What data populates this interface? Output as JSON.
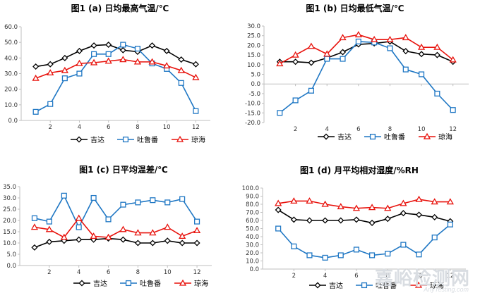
{
  "colors": {
    "jida": "#000000",
    "tulufan": "#1f77c4",
    "qionghai": "#e8120c",
    "axis": "#bfbfbf"
  },
  "watermark": {
    "text": "嘉峪检测网",
    "sub": "AnyTesting.com"
  },
  "chart_data": [
    {
      "type": "line",
      "title": "图1 (a) 日均最高气温/℃",
      "xlabel": "",
      "ylabel": "",
      "ylim": [
        0,
        60
      ],
      "yticks": [
        0,
        10,
        20,
        30,
        40,
        50,
        60
      ],
      "y_decimals": 1,
      "xticks": [
        2,
        4,
        6,
        8,
        10,
        12
      ],
      "x": [
        1,
        2,
        3,
        4,
        5,
        6,
        7,
        8,
        9,
        10,
        11,
        12
      ],
      "legend_position": "bottom",
      "series": [
        {
          "name": "吉达",
          "marker": "diamond",
          "color": "#000000",
          "values": [
            34.5,
            36,
            40,
            44.5,
            48,
            48.5,
            45,
            44,
            48,
            44.5,
            39,
            36
          ]
        },
        {
          "name": "吐鲁番",
          "marker": "square",
          "color": "#1f77c4",
          "values": [
            5.5,
            10.5,
            27,
            30,
            42.5,
            42.5,
            48.5,
            46,
            36.5,
            33,
            24,
            6
          ]
        },
        {
          "name": "琼海",
          "marker": "triangle",
          "color": "#e8120c",
          "values": [
            27,
            30.5,
            32,
            36.5,
            37,
            38,
            39,
            37.5,
            37.5,
            35,
            32,
            27.5
          ]
        }
      ]
    },
    {
      "type": "line",
      "title": "图1 (b) 日均最低气温/℃",
      "xlabel": "",
      "ylabel": "",
      "ylim": [
        -20,
        30
      ],
      "yticks": [
        -20,
        -15,
        -10,
        -5,
        0,
        5,
        10,
        15,
        20,
        25,
        30
      ],
      "y_decimals": 1,
      "xticks": [
        2,
        4,
        6,
        8,
        10,
        12
      ],
      "x": [
        1,
        2,
        3,
        4,
        5,
        6,
        7,
        8,
        9,
        10,
        11,
        12
      ],
      "legend_position": "bottom",
      "series": [
        {
          "name": "吉达",
          "marker": "diamond",
          "color": "#000000",
          "values": [
            11.5,
            11.5,
            11,
            13.5,
            16.5,
            20.5,
            21,
            22,
            17,
            15.5,
            15,
            11.5
          ]
        },
        {
          "name": "吐鲁番",
          "marker": "square",
          "color": "#1f77c4",
          "values": [
            -15,
            -8.5,
            -3.5,
            13,
            13,
            22,
            21.5,
            18.5,
            7.5,
            5,
            -5,
            -13.5
          ]
        },
        {
          "name": "琼海",
          "marker": "triangle",
          "color": "#e8120c",
          "values": [
            10.5,
            15,
            19.5,
            15.5,
            24,
            25.5,
            23,
            23,
            24,
            19,
            19,
            12.5
          ]
        }
      ]
    },
    {
      "type": "line",
      "title": "图1 (c) 日平均温差/℃",
      "xlabel": "",
      "ylabel": "",
      "ylim": [
        0,
        35
      ],
      "yticks": [
        0,
        5,
        10,
        15,
        20,
        25,
        30,
        35
      ],
      "y_decimals": 1,
      "xticks": [
        2,
        4,
        6,
        8,
        10,
        12
      ],
      "x": [
        1,
        2,
        3,
        4,
        5,
        6,
        7,
        8,
        9,
        10,
        11,
        12
      ],
      "legend_position": "bottom",
      "series": [
        {
          "name": "吉达",
          "marker": "diamond",
          "color": "#000000",
          "values": [
            8,
            10.5,
            11,
            11.5,
            11.5,
            12,
            11.5,
            10,
            10,
            11,
            10,
            10
          ]
        },
        {
          "name": "吐鲁番",
          "marker": "square",
          "color": "#1f77c4",
          "values": [
            21,
            19.5,
            31,
            17,
            30,
            20.5,
            27,
            28,
            29,
            28,
            29.5,
            19.5
          ]
        },
        {
          "name": "琼海",
          "marker": "triangle",
          "color": "#e8120c",
          "values": [
            17,
            16,
            12.5,
            21,
            13,
            12.5,
            16,
            14.5,
            14.5,
            17,
            13,
            15.5
          ]
        }
      ]
    },
    {
      "type": "line",
      "title": "图1 (d) 月平均相对湿度/%RH",
      "xlabel": "",
      "ylabel": "",
      "ylim": [
        0,
        100
      ],
      "yticks": [
        0,
        10,
        20,
        30,
        40,
        50,
        60,
        70,
        80,
        90,
        100
      ],
      "y_decimals": 1,
      "xticks": [
        2,
        4,
        6,
        8,
        10,
        12
      ],
      "x": [
        1,
        2,
        3,
        4,
        5,
        6,
        7,
        8,
        9,
        10,
        11,
        12
      ],
      "legend_position": "bottom",
      "series": [
        {
          "name": "吉达",
          "marker": "diamond",
          "color": "#000000",
          "values": [
            73,
            61,
            60,
            60,
            60,
            61,
            57,
            62,
            69,
            67,
            64,
            59
          ]
        },
        {
          "name": "吐鲁番",
          "marker": "square",
          "color": "#1f77c4",
          "values": [
            50,
            28,
            17,
            14,
            17,
            24,
            17,
            19,
            30,
            18,
            39,
            55
          ]
        },
        {
          "name": "琼海",
          "marker": "triangle",
          "color": "#e8120c",
          "values": [
            81,
            84,
            84,
            80,
            77,
            75,
            76,
            75,
            81,
            86,
            83,
            83
          ]
        }
      ]
    }
  ]
}
